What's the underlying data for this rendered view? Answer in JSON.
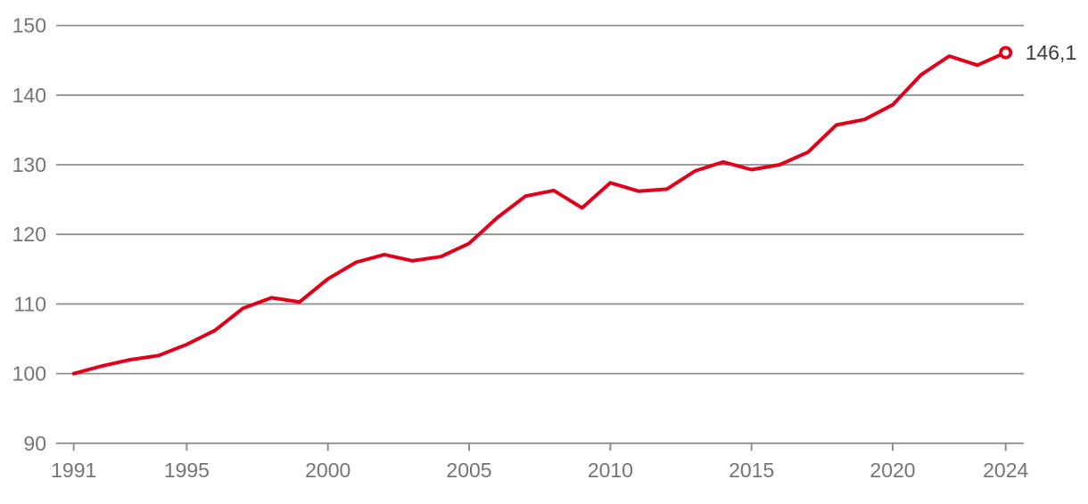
{
  "chart_data": {
    "type": "line",
    "title": "",
    "x": [
      1991,
      1992,
      1993,
      1994,
      1995,
      1996,
      1997,
      1998,
      1999,
      2000,
      2001,
      2002,
      2003,
      2004,
      2005,
      2006,
      2007,
      2008,
      2009,
      2010,
      2011,
      2012,
      2013,
      2014,
      2015,
      2016,
      2017,
      2018,
      2019,
      2020,
      2021,
      2022,
      2023,
      2024
    ],
    "values": [
      100.0,
      101.1,
      102.0,
      102.6,
      104.2,
      106.2,
      109.4,
      110.9,
      110.3,
      113.6,
      116.0,
      117.1,
      116.2,
      116.8,
      118.7,
      122.4,
      125.5,
      126.3,
      123.8,
      127.4,
      126.2,
      126.5,
      129.1,
      130.4,
      129.3,
      130.0,
      131.8,
      135.7,
      136.5,
      138.6,
      142.9,
      145.6,
      144.3,
      146.1
    ],
    "end_label": "146,1",
    "x_ticks": [
      1991,
      1995,
      2000,
      2005,
      2010,
      2015,
      2020,
      2024
    ],
    "y_ticks": [
      150,
      140,
      130,
      120,
      110,
      100,
      90
    ],
    "ylim": [
      90,
      150
    ],
    "xlim": [
      1991,
      2024
    ],
    "grid": "horizontal",
    "legend": "none",
    "colors": {
      "line": "#e10019",
      "grid": "#8e8e8e",
      "axis": "#8e8e8e",
      "tick_label": "#757575",
      "end_label": "#3c3c3c",
      "marker_fill": "#ffffff",
      "background": "#ffffff"
    }
  }
}
